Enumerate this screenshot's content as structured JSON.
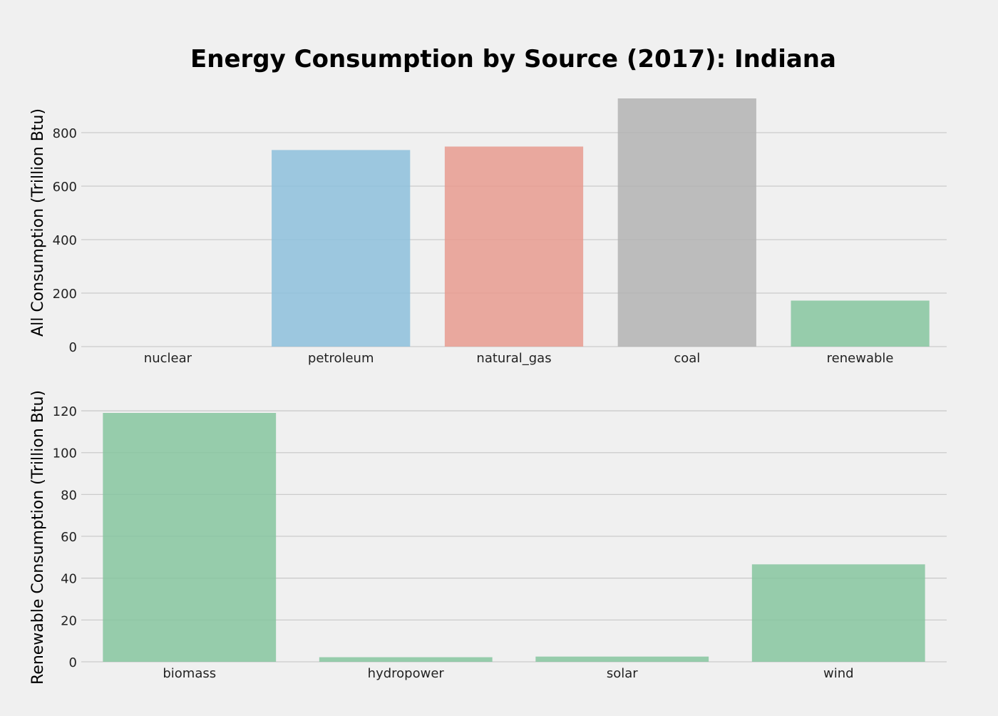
{
  "figure": {
    "title": "Energy Consumption by Source (2017): Indiana"
  },
  "chart_data": [
    {
      "type": "bar",
      "title": "",
      "xlabel": "",
      "ylabel": "All Consumption (Trillion Btu)",
      "categories": [
        "nuclear",
        "petroleum",
        "natural_gas",
        "coal",
        "renewable"
      ],
      "values": [
        0,
        735,
        748,
        928,
        172
      ],
      "colors": [
        "#8dbfdc",
        "#8dbfdc",
        "#e89b8f",
        "#b3b3b3",
        "#86c59f"
      ],
      "ylim": [
        0,
        928
      ],
      "yticks": [
        0,
        200,
        400,
        600,
        800
      ],
      "grid": true
    },
    {
      "type": "bar",
      "title": "",
      "xlabel": "",
      "ylabel": "Renewable Consumption (Trillion Btu)",
      "categories": [
        "biomass",
        "hydropower",
        "solar",
        "wind"
      ],
      "values": [
        119,
        2.2,
        2.5,
        46.6
      ],
      "colors": [
        "#86c59f",
        "#86c59f",
        "#86c59f",
        "#86c59f"
      ],
      "ylim": [
        0,
        119
      ],
      "yticks": [
        0,
        20,
        40,
        60,
        80,
        100,
        120
      ],
      "grid": true
    }
  ]
}
